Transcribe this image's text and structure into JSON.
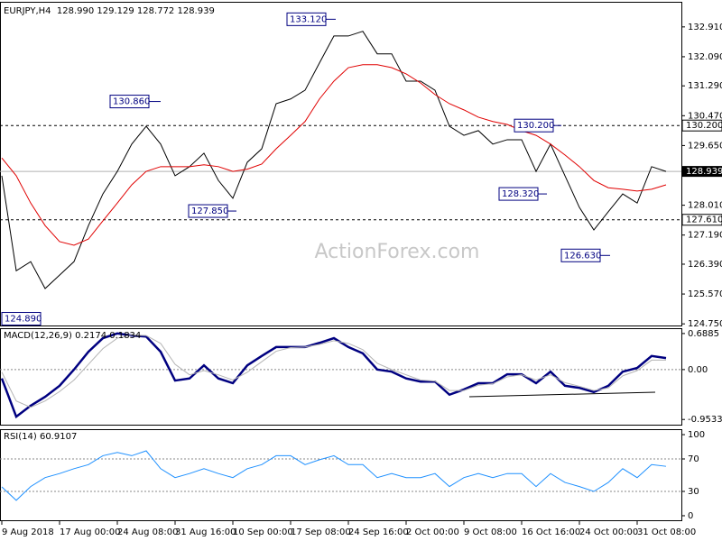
{
  "chart_data": [
    {
      "type": "line",
      "title": "EURJPY,H4  128.990 129.129 128.772 128.939",
      "ylim": [
        124.68,
        133.55
      ],
      "yticks": [
        {
          "value": 124.75,
          "label": "124.750"
        },
        {
          "value": 125.57,
          "label": "125.570"
        },
        {
          "value": 126.39,
          "label": "126.390"
        },
        {
          "value": 127.19,
          "label": "127.190"
        },
        {
          "value": 128.01,
          "label": "128.010"
        },
        {
          "value": 129.65,
          "label": "129.650"
        },
        {
          "value": 130.47,
          "label": "130.470"
        },
        {
          "value": 131.29,
          "label": "131.290"
        },
        {
          "value": 132.09,
          "label": "132.090"
        },
        {
          "value": 132.91,
          "label": "132.910"
        }
      ],
      "grid": false,
      "series": [
        {
          "color": "#000000",
          "values": [
            128.82,
            126.21,
            126.46,
            125.72,
            126.09,
            126.46,
            127.45,
            128.32,
            128.94,
            129.69,
            130.18,
            129.69,
            128.82,
            129.07,
            129.44,
            128.69,
            128.2,
            129.19,
            129.56,
            130.8,
            130.93,
            131.17,
            131.92,
            132.66,
            132.66,
            132.79,
            132.17,
            132.17,
            131.42,
            131.42,
            131.17,
            130.18,
            129.93,
            130.06,
            129.69,
            129.81,
            129.81,
            128.94,
            129.69,
            128.82,
            127.95,
            127.33,
            127.83,
            128.32,
            128.07,
            129.07,
            128.939
          ]
        },
        {
          "color": "#e00000",
          "values": [
            129.31,
            128.82,
            128.07,
            127.45,
            127.01,
            126.91,
            127.08,
            127.58,
            128.07,
            128.57,
            128.94,
            129.07,
            129.07,
            129.07,
            129.12,
            129.07,
            128.94,
            129.0,
            129.14,
            129.56,
            129.93,
            130.31,
            130.93,
            131.42,
            131.79,
            131.87,
            131.87,
            131.79,
            131.62,
            131.37,
            131.05,
            130.8,
            130.63,
            130.43,
            130.31,
            130.23,
            130.06,
            129.93,
            129.69,
            129.39,
            129.07,
            128.69,
            128.49,
            128.45,
            128.4,
            128.45,
            128.57
          ]
        }
      ],
      "levels": [
        {
          "value": 130.2,
          "label": "130.200"
        },
        {
          "value": 127.61,
          "label": "127.610"
        }
      ],
      "last_price": {
        "value": 128.939,
        "label": "128.939"
      },
      "annotations": [
        {
          "value": 133.12,
          "label": "133.120"
        },
        {
          "value": 130.86,
          "label": "130.860"
        },
        {
          "value": 127.85,
          "label": "127.850"
        },
        {
          "value": 124.89,
          "label": "124.890"
        },
        {
          "value": 128.32,
          "label": "128.320"
        },
        {
          "value": 130.2,
          "label": "130.200"
        },
        {
          "value": 126.63,
          "label": "126.630"
        }
      ],
      "watermark": "ActionForex.com"
    },
    {
      "type": "line",
      "title": "MACD(12,26,9) 0.2174 0.1834",
      "ylim": [
        -1.07,
        0.79
      ],
      "yticks": [
        -0.9533,
        {
          "value": 0,
          "label": "0.00"
        },
        0.6885
      ],
      "grid": true,
      "series": [
        {
          "color": "#000080",
          "values": [
            -0.17,
            -0.9,
            -0.69,
            -0.52,
            -0.31,
            0,
            0.34,
            0.6,
            0.69,
            0.65,
            0.63,
            0.34,
            -0.21,
            -0.17,
            0.08,
            -0.17,
            -0.26,
            0.08,
            0.26,
            0.43,
            0.43,
            0.43,
            0.51,
            0.6,
            0.43,
            0.31,
            0,
            -0.04,
            -0.17,
            -0.23,
            -0.23,
            -0.48,
            -0.38,
            -0.26,
            -0.26,
            -0.09,
            -0.09,
            -0.26,
            -0.04,
            -0.31,
            -0.35,
            -0.43,
            -0.31,
            -0.04,
            0.03,
            0.26,
            0.22
          ]
        },
        {
          "color": "#b4b4b4",
          "values": [
            -0.05,
            -0.6,
            -0.72,
            -0.6,
            -0.42,
            -0.2,
            0.1,
            0.4,
            0.6,
            0.66,
            0.65,
            0.5,
            0.1,
            -0.1,
            -0.02,
            -0.1,
            -0.2,
            -0.05,
            0.15,
            0.35,
            0.42,
            0.43,
            0.48,
            0.55,
            0.5,
            0.38,
            0.12,
            0,
            -0.1,
            -0.2,
            -0.22,
            -0.4,
            -0.4,
            -0.3,
            -0.27,
            -0.14,
            -0.1,
            -0.2,
            -0.1,
            -0.25,
            -0.32,
            -0.4,
            -0.35,
            -0.12,
            -0.02,
            0.18,
            0.18
          ]
        }
      ]
    },
    {
      "type": "line",
      "title": "RSI(14) 60.9107",
      "ylim": [
        -6.7,
        106.7
      ],
      "yticks": [
        0,
        30,
        70,
        100
      ],
      "grid": true,
      "categories": [
        "9 Aug 2018",
        null,
        null,
        null,
        "17 Aug 00:00",
        null,
        null,
        null,
        "24 Aug 08:00",
        null,
        null,
        null,
        "31 Aug 16:00",
        null,
        null,
        null,
        "10 Sep 00:00",
        null,
        null,
        null,
        "17 Sep 08:00",
        null,
        null,
        null,
        "24 Sep 16:00",
        null,
        null,
        null,
        "2 Oct 00:00",
        null,
        null,
        null,
        "9 Oct 08:00",
        null,
        null,
        null,
        "16 Oct 16:00",
        null,
        null,
        null,
        "24 Oct 00:00",
        null,
        null,
        null,
        "31 Oct 08:00",
        null,
        null
      ],
      "series": [
        {
          "color": "#1e90ff",
          "values": [
            35.6,
            19,
            36,
            47,
            52,
            58,
            63,
            74,
            78,
            74,
            80,
            58,
            47,
            52,
            58,
            52,
            47,
            58,
            63,
            74,
            74,
            63,
            69,
            74,
            63,
            63,
            47,
            52,
            47,
            47,
            52,
            36,
            47,
            52,
            47,
            52,
            52,
            36,
            52,
            41,
            36,
            30,
            41,
            58,
            47,
            63,
            60.91
          ]
        }
      ]
    }
  ]
}
